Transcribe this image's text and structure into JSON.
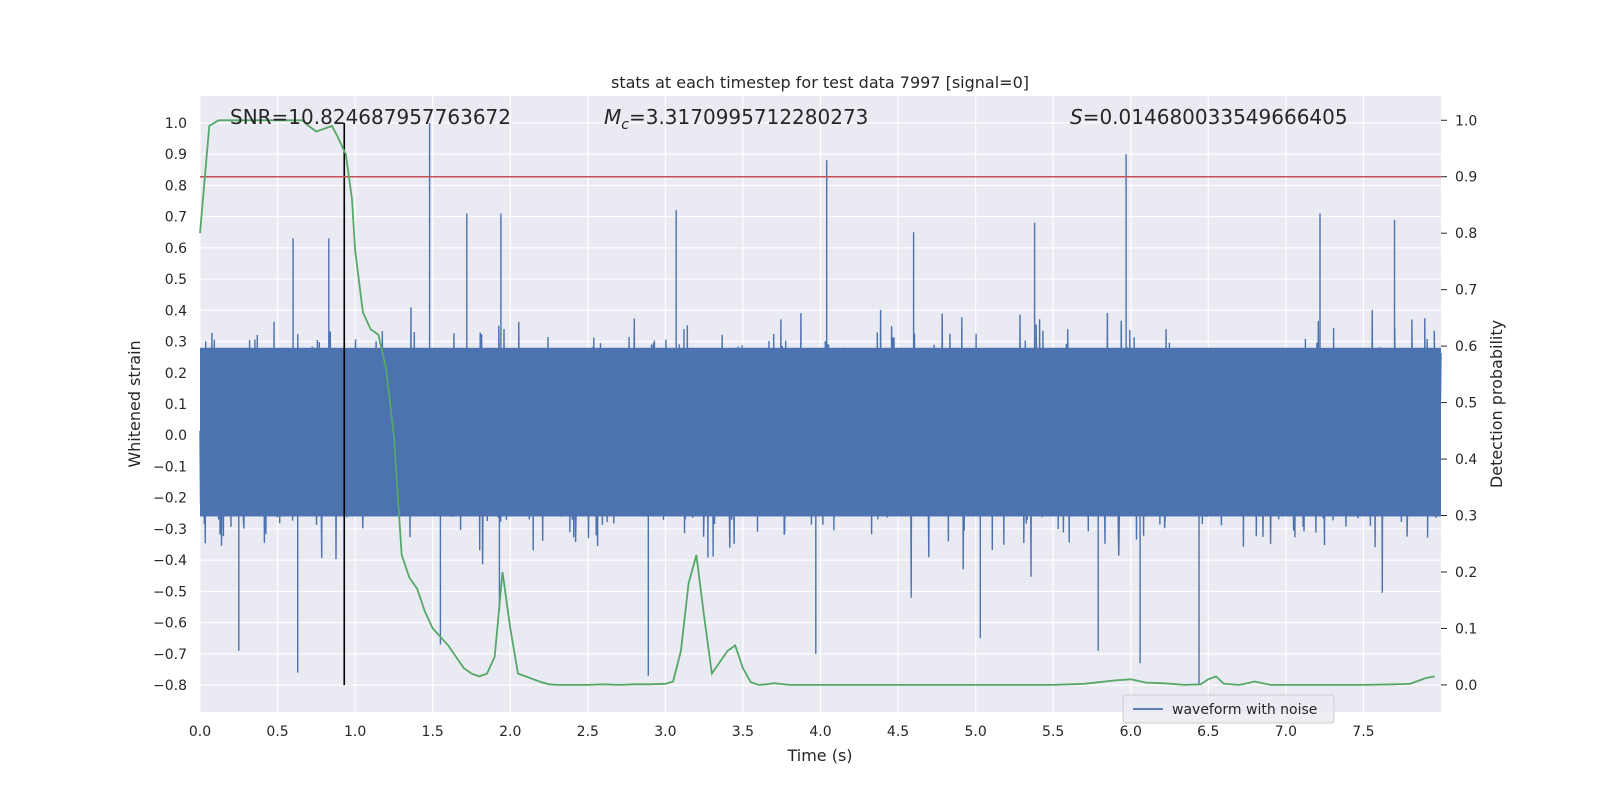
{
  "chart_data": {
    "type": "line",
    "title": "stats at each timestep for test data 7997 [signal=0]",
    "xlabel": "Time (s)",
    "ylabel": "Whitened strain",
    "ylabel_right": "Detection probability",
    "xlim": [
      0.0,
      8.0
    ],
    "ylim": [
      -0.886,
      1.086
    ],
    "ylim_right": [
      -0.048,
      1.043
    ],
    "x_ticks": [
      0.0,
      0.5,
      1.0,
      1.5,
      2.0,
      2.5,
      3.0,
      3.5,
      4.0,
      4.5,
      5.0,
      5.5,
      6.0,
      6.5,
      7.0,
      7.5
    ],
    "x_tick_labels": [
      "0.0",
      "0.5",
      "1.0",
      "1.5",
      "2.0",
      "2.5",
      "3.0",
      "3.5",
      "4.0",
      "4.5",
      "5.0",
      "5.5",
      "6.0",
      "6.5",
      "7.0",
      "7.5"
    ],
    "y_ticks": [
      -0.8,
      -0.7,
      -0.6,
      -0.5,
      -0.4,
      -0.3,
      -0.2,
      -0.1,
      0.0,
      0.1,
      0.2,
      0.3,
      0.4,
      0.5,
      0.6,
      0.7,
      0.8,
      0.9,
      1.0
    ],
    "y_tick_labels": [
      "−0.8",
      "−0.7",
      "−0.6",
      "−0.5",
      "−0.4",
      "−0.3",
      "−0.2",
      "−0.1",
      "0.0",
      "0.1",
      "0.2",
      "0.3",
      "0.4",
      "0.5",
      "0.6",
      "0.7",
      "0.8",
      "0.9",
      "1.0"
    ],
    "y_right_ticks": [
      0.0,
      0.1,
      0.2,
      0.3,
      0.4,
      0.5,
      0.6,
      0.7,
      0.8,
      0.9,
      1.0
    ],
    "y_right_tick_labels": [
      "0.0",
      "0.1",
      "0.2",
      "0.3",
      "0.4",
      "0.5",
      "0.6",
      "0.7",
      "0.8",
      "0.9",
      "1.0"
    ],
    "grid": true,
    "legend_position": "lower-right",
    "annotations": {
      "snr": "SNR=10.824687957763672",
      "mc_symbol": "M",
      "mc_sub": "c",
      "mc_value": "=3.3170995712280273",
      "s_symbol": "S",
      "s_value": "=0.014680033549666405"
    },
    "series": [
      {
        "name": "waveform with noise",
        "axis": "left",
        "color": "#4c72b0",
        "kind": "noise",
        "typical_range": [
          -0.45,
          0.45
        ],
        "core_band": [
          -0.26,
          0.28
        ],
        "extreme_points": [
          {
            "x": 1.48,
            "y": 1.0
          },
          {
            "x": 4.04,
            "y": 0.88
          },
          {
            "x": 5.97,
            "y": 0.9
          },
          {
            "x": 1.72,
            "y": 0.71
          },
          {
            "x": 1.94,
            "y": 0.71
          },
          {
            "x": 4.6,
            "y": 0.65
          },
          {
            "x": 5.38,
            "y": 0.68
          },
          {
            "x": 7.22,
            "y": 0.71
          },
          {
            "x": 7.7,
            "y": 0.69
          },
          {
            "x": 0.83,
            "y": 0.63
          },
          {
            "x": 0.6,
            "y": 0.63
          },
          {
            "x": 3.07,
            "y": 0.72
          },
          {
            "x": 0.25,
            "y": -0.69
          },
          {
            "x": 0.63,
            "y": -0.76
          },
          {
            "x": 2.89,
            "y": -0.77
          },
          {
            "x": 3.97,
            "y": -0.7
          },
          {
            "x": 5.03,
            "y": -0.65
          },
          {
            "x": 5.79,
            "y": -0.69
          },
          {
            "x": 6.06,
            "y": -0.73
          },
          {
            "x": 6.44,
            "y": -0.8
          },
          {
            "x": 1.55,
            "y": -0.67
          },
          {
            "x": 1.93,
            "y": -0.56
          },
          {
            "x": 2.0,
            "y": 0.02
          }
        ]
      },
      {
        "name": "",
        "axis": "right",
        "color": "#55a868",
        "x": [
          0.0,
          0.06,
          0.12,
          0.2,
          0.3,
          0.4,
          0.5,
          0.6,
          0.66,
          0.7,
          0.75,
          0.85,
          0.88,
          0.94,
          0.98,
          1.0,
          1.05,
          1.1,
          1.15,
          1.2,
          1.25,
          1.3,
          1.35,
          1.4,
          1.45,
          1.5,
          1.6,
          1.7,
          1.75,
          1.8,
          1.85,
          1.9,
          1.95,
          2.0,
          2.05,
          2.1,
          2.15,
          2.2,
          2.25,
          2.3,
          2.4,
          2.5,
          2.6,
          2.7,
          2.8,
          2.9,
          3.0,
          3.05,
          3.1,
          3.15,
          3.2,
          3.25,
          3.3,
          3.35,
          3.4,
          3.45,
          3.5,
          3.55,
          3.6,
          3.65,
          3.7,
          3.8,
          3.9,
          4.0,
          4.5,
          5.0,
          5.5,
          5.7,
          5.9,
          6.0,
          6.1,
          6.2,
          6.35,
          6.45,
          6.5,
          6.55,
          6.6,
          6.7,
          6.75,
          6.8,
          6.9,
          7.0,
          7.5,
          7.7,
          7.8,
          7.9,
          7.96
        ],
        "y": [
          0.8,
          0.99,
          1.0,
          1.0,
          1.0,
          1.0,
          1.0,
          1.0,
          1.0,
          0.99,
          0.98,
          0.99,
          0.975,
          0.94,
          0.86,
          0.77,
          0.66,
          0.63,
          0.62,
          0.56,
          0.44,
          0.23,
          0.19,
          0.17,
          0.13,
          0.1,
          0.07,
          0.03,
          0.02,
          0.015,
          0.02,
          0.05,
          0.2,
          0.1,
          0.02,
          0.015,
          0.01,
          0.005,
          0.001,
          0.0,
          0.0,
          0.0,
          0.001,
          0.0,
          0.001,
          0.001,
          0.002,
          0.006,
          0.06,
          0.18,
          0.23,
          0.12,
          0.02,
          0.04,
          0.06,
          0.07,
          0.03,
          0.005,
          0.0,
          0.001,
          0.003,
          0.0,
          0.0,
          0.0,
          0.0,
          0.0,
          0.0,
          0.002,
          0.008,
          0.01,
          0.004,
          0.003,
          0.0,
          0.001,
          0.01,
          0.015,
          0.002,
          0.0,
          0.003,
          0.006,
          0.0,
          0.0,
          0.0,
          0.001,
          0.002,
          0.012,
          0.015
        ]
      }
    ],
    "reference_lines": [
      {
        "orientation": "vertical",
        "x": 0.93,
        "y_range": [
          -0.8,
          1.0
        ],
        "color": "#000000"
      },
      {
        "orientation": "horizontal",
        "axis": "right",
        "y": 0.9,
        "color": "#c44e52"
      }
    ]
  }
}
